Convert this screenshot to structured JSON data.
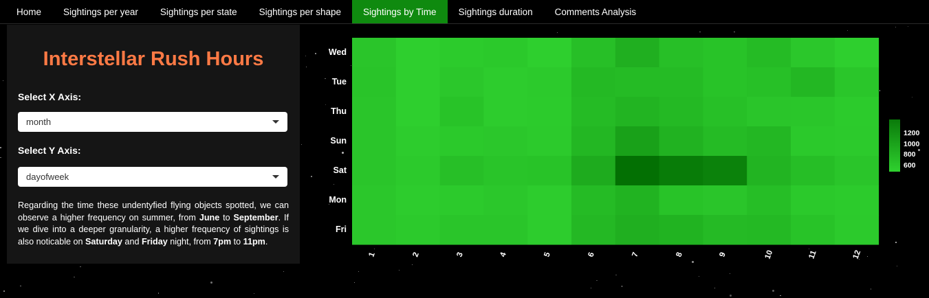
{
  "nav": {
    "items": [
      "Home",
      "Sightings per year",
      "Sightings per state",
      "Sightings per shape",
      "Sightings by Time",
      "Sightings duration",
      "Comments Analysis"
    ],
    "active_index": 4,
    "active_color": "#0f8a0f"
  },
  "panel": {
    "title": "Interstellar Rush Hours",
    "title_color": "#ff7a45",
    "x_axis_label": "Select X Axis:",
    "x_axis_value": "month",
    "y_axis_label": "Select Y Axis:",
    "y_axis_value": "dayofweek",
    "description": [
      {
        "t": "Regarding the time these undentyfied flying objects spotted, we can observe a higher frequency on summer, from ",
        "b": false
      },
      {
        "t": "June",
        "b": true
      },
      {
        "t": " to ",
        "b": false
      },
      {
        "t": "September",
        "b": true
      },
      {
        "t": ". If we dive into a deeper granularity, a higher frequency of sightings is also noticable on ",
        "b": false
      },
      {
        "t": "Saturday",
        "b": true
      },
      {
        "t": " and ",
        "b": false
      },
      {
        "t": "Friday",
        "b": true
      },
      {
        "t": " night, from ",
        "b": false
      },
      {
        "t": "7pm",
        "b": true
      },
      {
        "t": " to ",
        "b": false
      },
      {
        "t": "11pm",
        "b": true
      },
      {
        "t": ".",
        "b": false
      }
    ]
  },
  "chart_data": {
    "type": "heatmap",
    "x": [
      "1",
      "2",
      "3",
      "4",
      "5",
      "6",
      "7",
      "8",
      "9",
      "10",
      "11",
      "12"
    ],
    "y": [
      "Wed",
      "Tue",
      "Thu",
      "Sun",
      "Sat",
      "Mon",
      "Fri"
    ],
    "values": [
      [
        640,
        560,
        590,
        610,
        560,
        690,
        820,
        690,
        660,
        720,
        620,
        560
      ],
      [
        650,
        560,
        620,
        580,
        600,
        740,
        720,
        720,
        660,
        680,
        760,
        630
      ],
      [
        640,
        560,
        660,
        580,
        590,
        720,
        780,
        740,
        680,
        640,
        630,
        590
      ],
      [
        640,
        580,
        610,
        620,
        600,
        760,
        940,
        800,
        720,
        760,
        610,
        600
      ],
      [
        640,
        600,
        690,
        650,
        660,
        860,
        1350,
        1250,
        1200,
        780,
        700,
        640
      ],
      [
        620,
        580,
        600,
        620,
        580,
        720,
        790,
        660,
        640,
        700,
        610,
        590
      ],
      [
        620,
        600,
        640,
        640,
        580,
        750,
        820,
        790,
        730,
        740,
        660,
        600
      ]
    ],
    "colorbar": {
      "ticks": [
        600,
        800,
        1000,
        1200
      ],
      "range": [
        540,
        1400
      ]
    },
    "color_low": "#2fd12f",
    "color_high": "#006a00",
    "legend_position": "right"
  }
}
